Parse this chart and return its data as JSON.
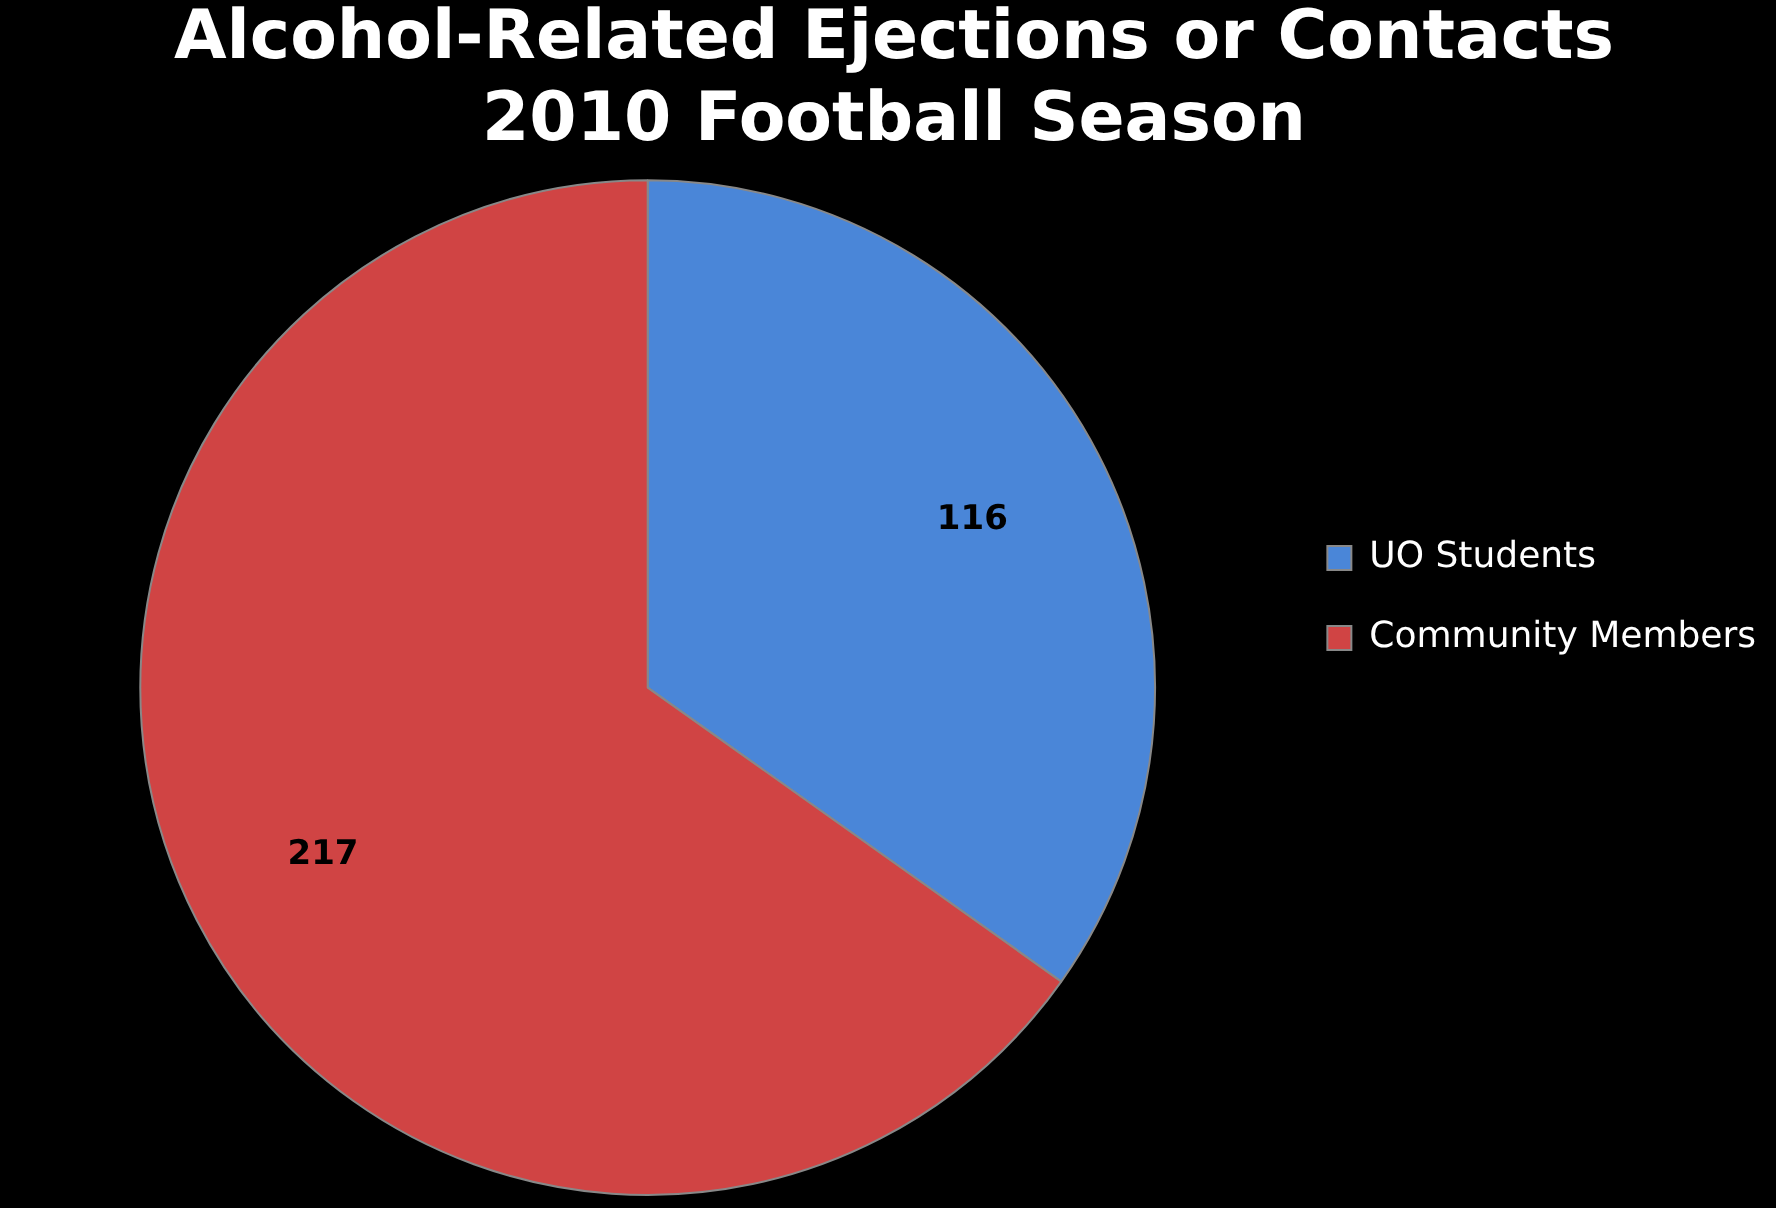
{
  "chart_data": {
    "type": "pie",
    "title": "Alcohol-Related Ejections or Contacts",
    "subtitle": "2010 Football Season",
    "categories": [
      "UO Students",
      "Community Members"
    ],
    "values": [
      116,
      217
    ],
    "colors": [
      "#4a86d8",
      "#d04444"
    ],
    "data_labels": true,
    "legend": "right"
  }
}
